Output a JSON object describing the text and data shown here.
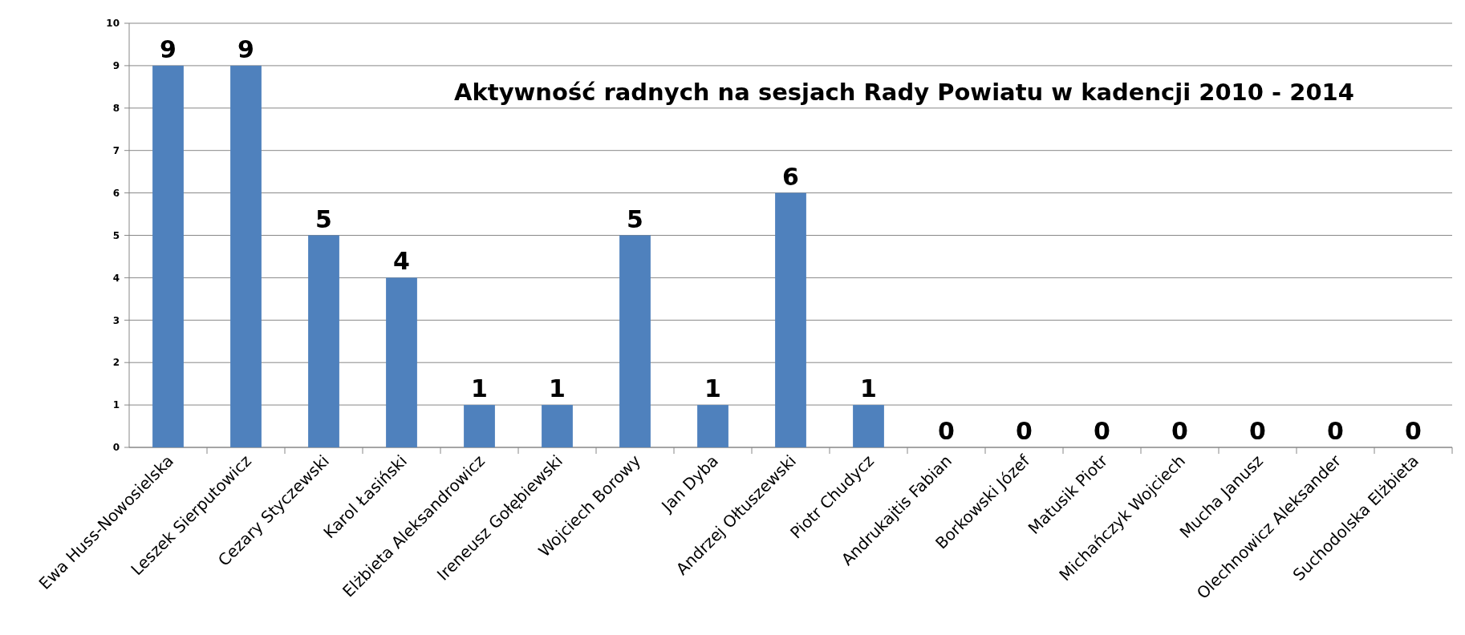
{
  "chart_data": {
    "type": "bar",
    "title": "Aktywność radnych na sesjach Rady Powiatu w kadencji 2010 - 2014",
    "categories": [
      "Ewa Huss-Nowosielska",
      "Leszek Sierputowicz",
      "Cezary Styczewski",
      "Karol Łasiński",
      "Elżbieta Aleksandrowicz",
      "Ireneusz Gołębiewski",
      "Wojciech Borowy",
      "Jan Dyba",
      "Andrzej Ołtuszewski",
      "Piotr Chudycz",
      "Andrukajtis Fabian",
      "Borkowski Józef",
      "Matusik Piotr",
      "Michańczyk Wojciech",
      "Mucha Janusz",
      "Olechnowicz Aleksander",
      "Suchodolska Elżbieta"
    ],
    "values": [
      9,
      9,
      5,
      4,
      1,
      1,
      5,
      1,
      6,
      1,
      0,
      0,
      0,
      0,
      0,
      0,
      0
    ],
    "color": "#4f81bd",
    "ylim": [
      0,
      10
    ],
    "yticks": [
      0,
      1,
      2,
      3,
      4,
      5,
      6,
      7,
      8,
      9,
      10
    ],
    "grid": "y",
    "data_labels": true
  }
}
